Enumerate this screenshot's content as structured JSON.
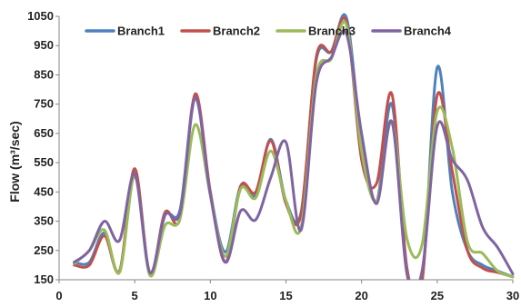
{
  "chart_data": {
    "type": "line",
    "title": "",
    "xlabel": "",
    "ylabel": "Flow (m³/sec)",
    "xlim": [
      0,
      30
    ],
    "ylim": [
      150,
      1050
    ],
    "xticks": [
      "0",
      "5",
      "10",
      "15",
      "20",
      "25",
      "30"
    ],
    "yticks": [
      "150",
      "250",
      "350",
      "450",
      "550",
      "650",
      "750",
      "850",
      "950",
      "1050"
    ],
    "grid": false,
    "legend_position": "top",
    "x": [
      1,
      2,
      3,
      4,
      5,
      6,
      7,
      8,
      9,
      10,
      11,
      12,
      13,
      14,
      15,
      16,
      17,
      18,
      19,
      20,
      21,
      22,
      23,
      24,
      25,
      26,
      27,
      28,
      29,
      30
    ],
    "series": [
      {
        "name": "Branch1",
        "color": "#4F81BD",
        "values": [
          210,
          210,
          310,
          180,
          520,
          175,
          370,
          390,
          780,
          450,
          245,
          470,
          440,
          630,
          420,
          380,
          900,
          930,
          1045,
          620,
          420,
          750,
          175,
          140,
          875,
          450,
          250,
          200,
          180,
          160
        ]
      },
      {
        "name": "Branch2",
        "color": "#C0504D",
        "values": [
          200,
          200,
          300,
          180,
          530,
          170,
          380,
          360,
          785,
          450,
          210,
          470,
          450,
          625,
          410,
          375,
          910,
          930,
          1030,
          560,
          480,
          785,
          190,
          150,
          780,
          520,
          250,
          190,
          175,
          160
        ]
      },
      {
        "name": "Branch3",
        "color": "#9BBB59",
        "values": [
          205,
          250,
          320,
          175,
          500,
          165,
          335,
          360,
          680,
          440,
          230,
          460,
          430,
          590,
          420,
          330,
          845,
          905,
          1020,
          590,
          420,
          690,
          290,
          270,
          725,
          600,
          280,
          240,
          180,
          160
        ]
      },
      {
        "name": "Branch4",
        "color": "#8064A2",
        "values": [
          210,
          250,
          350,
          285,
          510,
          175,
          370,
          380,
          770,
          440,
          210,
          385,
          355,
          500,
          620,
          320,
          820,
          910,
          990,
          650,
          410,
          690,
          170,
          180,
          675,
          560,
          490,
          330,
          260,
          170
        ]
      }
    ]
  }
}
